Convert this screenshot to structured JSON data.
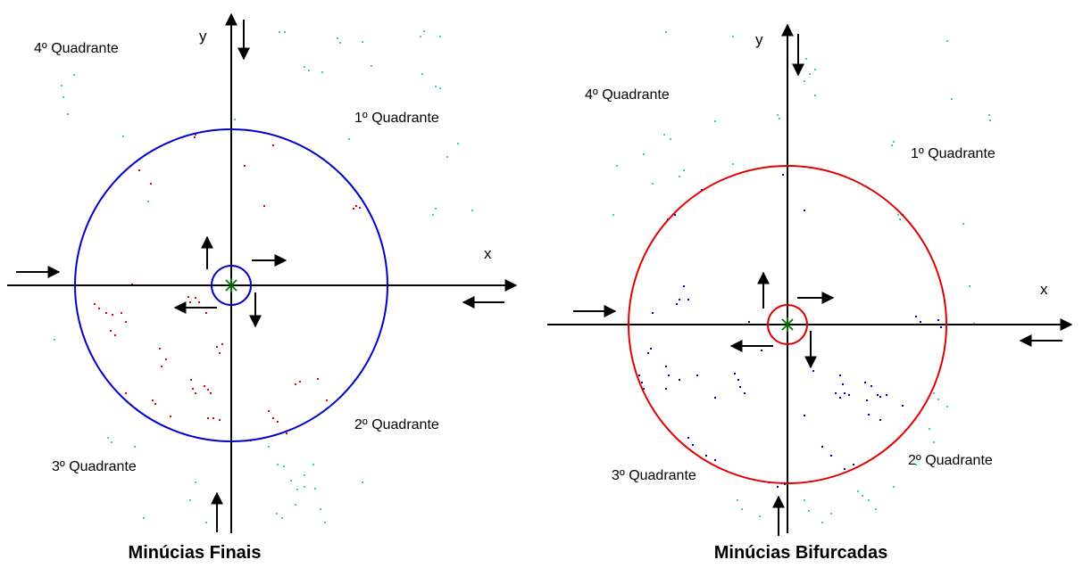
{
  "panels": [
    {
      "id": "finais",
      "caption": "Minúcias Finais",
      "x_label": "x",
      "y_label": "y",
      "quadrants": {
        "q1": "1º Quadrante",
        "q2": "2º Quadrante",
        "q3": "3º Quadrante",
        "q4": "4º Quadrante"
      },
      "outer_circle_color": "#0000cc",
      "inner_circle_color": "#0000cc",
      "inside_dot_color": "#e00000",
      "outside_dot_color": "#33cccc",
      "center_marker_color": "#007700"
    },
    {
      "id": "bifurcadas",
      "caption": "Minúcias Bifurcadas",
      "x_label": "x",
      "y_label": "y",
      "quadrants": {
        "q1": "1º Quadrante",
        "q2": "2º Quadrante",
        "q3": "3º Quadrante",
        "q4": "4º Quadrante"
      },
      "outer_circle_color": "#e00000",
      "inner_circle_color": "#e00000",
      "inside_dot_color": "#0000cc",
      "outside_dot_color": "#33cccc",
      "center_marker_color": "#007700"
    }
  ]
}
